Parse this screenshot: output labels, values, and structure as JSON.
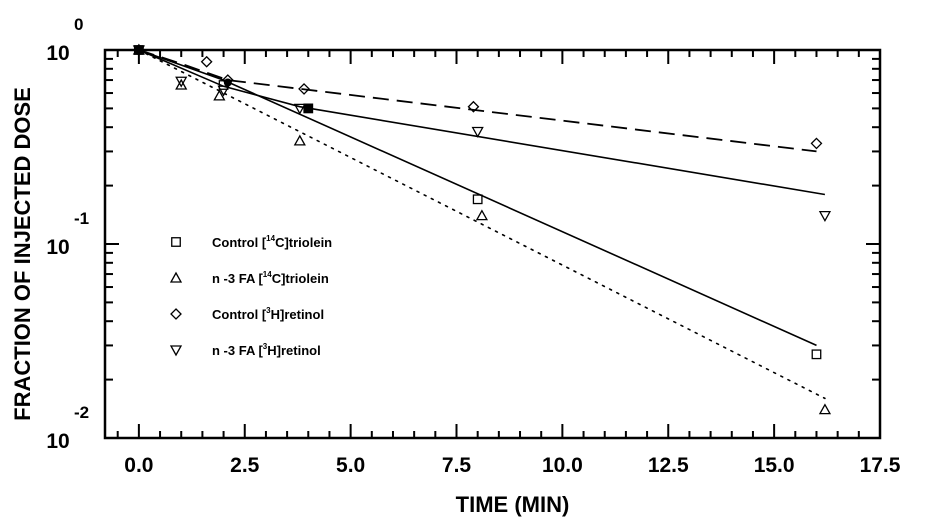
{
  "chart_data": {
    "type": "scatter",
    "title": "",
    "xlabel": "TIME (MIN)",
    "ylabel": "FRACTION OF INJECTED DOSE",
    "xlim": [
      -0.8,
      17.5
    ],
    "ylim": [
      0.01,
      1
    ],
    "yscale": "log",
    "grid": false,
    "legend_position": "lower-left",
    "x_ticks": [
      "0.0",
      "2.5",
      "5.0",
      "7.5",
      "10.0",
      "12.5",
      "15.0",
      "17.5"
    ],
    "y_ticks": [
      {
        "base": "10",
        "exp": "0"
      },
      {
        "base": "10",
        "exp": "-1"
      },
      {
        "base": "10",
        "exp": "-2"
      }
    ],
    "series": [
      {
        "name": "Control [14C]triolein",
        "legend_parts": {
          "pre": "Control [",
          "sup": "14",
          "post": "C]triolein"
        },
        "marker": "square",
        "line_style": "solid",
        "points": [
          [
            0,
            1.0
          ],
          [
            2.0,
            0.66
          ],
          [
            4.0,
            0.5
          ],
          [
            8.0,
            0.17
          ],
          [
            16.0,
            0.027
          ]
        ],
        "fit": [
          [
            0,
            1.0
          ],
          [
            2.0,
            0.7
          ],
          [
            16.0,
            0.03
          ]
        ]
      },
      {
        "name": "n-3 FA [14C]triolein",
        "legend_parts": {
          "pre": "n -3 FA [",
          "sup": "14",
          "post": "C]triolein"
        },
        "marker": "triangle-up",
        "line_style": "dotted",
        "points": [
          [
            0,
            1.0
          ],
          [
            1.0,
            0.66
          ],
          [
            1.9,
            0.58
          ],
          [
            3.8,
            0.34
          ],
          [
            8.1,
            0.14
          ],
          [
            16.2,
            0.014
          ]
        ],
        "fit": [
          [
            0,
            1.0
          ],
          [
            16.2,
            0.016
          ]
        ]
      },
      {
        "name": "Control [3H]retinol",
        "legend_parts": {
          "pre": "Control [",
          "sup": "3",
          "post": "H]retinol"
        },
        "marker": "diamond",
        "line_style": "dashed",
        "points": [
          [
            0,
            1.0
          ],
          [
            1.6,
            0.87
          ],
          [
            2.1,
            0.7
          ],
          [
            3.9,
            0.63
          ],
          [
            7.9,
            0.51
          ],
          [
            16.0,
            0.33
          ]
        ],
        "fit": [
          [
            0,
            1.0
          ],
          [
            1.0,
            0.85
          ],
          [
            2.1,
            0.7
          ],
          [
            16.0,
            0.3
          ]
        ]
      },
      {
        "name": "n-3 FA [3H]retinol",
        "legend_parts": {
          "pre": "n -3 FA [",
          "sup": "3",
          "post": "H]retinol"
        },
        "marker": "triangle-down",
        "line_style": "solid",
        "points": [
          [
            0,
            1.0
          ],
          [
            1.0,
            0.69
          ],
          [
            2.0,
            0.62
          ],
          [
            3.8,
            0.5
          ],
          [
            8.0,
            0.38
          ],
          [
            16.2,
            0.14
          ]
        ],
        "fit": [
          [
            0,
            1.0
          ],
          [
            2.0,
            0.65
          ],
          [
            3.8,
            0.51
          ],
          [
            16.2,
            0.18
          ]
        ]
      }
    ]
  }
}
